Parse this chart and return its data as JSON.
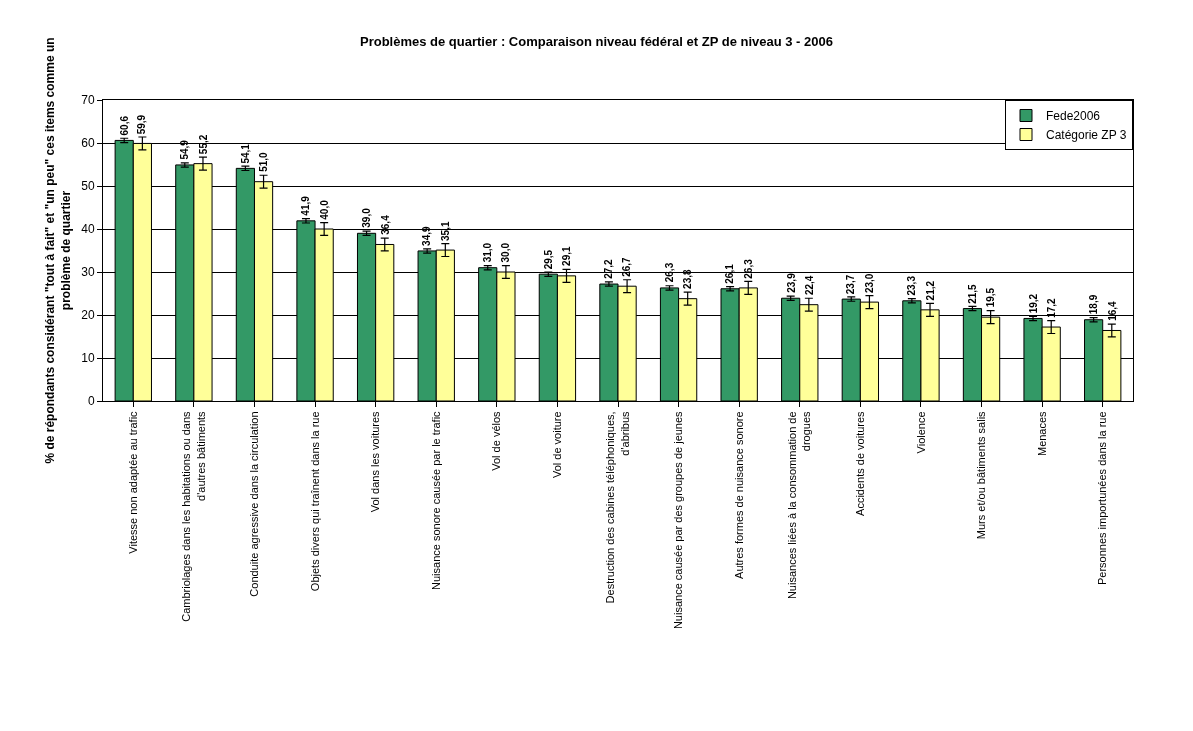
{
  "chart_data": {
    "type": "bar",
    "title": "Problèmes de quartier : Comparaison niveau fédéral et ZP de niveau 3 - 2006",
    "ylabel": "% de répondants considérant \"tout à fait\" et \"un peu\" ces items comme un problème de quartier",
    "categories": [
      "Vitesse non adaptée au trafic",
      "Cambriolages dans les habitations ou dans d'autres bâtiments",
      "Conduite agressive dans la circulation",
      "Objets divers qui traînent dans la rue",
      "Vol dans les voitures",
      "Nuisance sonore causée par le trafic",
      "Vol de vélos",
      "Vol de voiture",
      "Destruction des cabines téléphoniques, d'abribus",
      "Nuisance causée par des groupes de jeunes",
      "Autres formes de nuisance sonore",
      "Nuisances liées à la consommation de drogues",
      "Accidents de voitures",
      "Violence",
      "Murs et/ou bâtiments salis",
      "Menaces",
      "Personnes importunées dans la rue"
    ],
    "series": [
      {
        "name": "Fede2006",
        "color": "#339966",
        "values": [
          60.6,
          54.9,
          54.1,
          41.9,
          39.0,
          34.9,
          31.0,
          29.5,
          27.2,
          26.3,
          26.1,
          23.9,
          23.7,
          23.3,
          21.5,
          19.2,
          18.9
        ],
        "errors": [
          0.5,
          0.5,
          0.5,
          0.5,
          0.5,
          0.5,
          0.5,
          0.5,
          0.5,
          0.5,
          0.5,
          0.5,
          0.5,
          0.5,
          0.5,
          0.5,
          0.5
        ],
        "value_labels": [
          "60,6",
          "54,9",
          "54,1",
          "41,9",
          "39,0",
          "34,9",
          "31,0",
          "29,5",
          "27,2",
          "26,3",
          "26,1",
          "23,9",
          "23,7",
          "23,3",
          "21,5",
          "19,2",
          "18,9"
        ]
      },
      {
        "name": "Catégorie ZP 3",
        "color": "#ffff99",
        "values": [
          59.9,
          55.2,
          51.0,
          40.0,
          36.4,
          35.1,
          30.0,
          29.1,
          26.7,
          23.8,
          26.3,
          22.4,
          23.0,
          21.2,
          19.5,
          17.2,
          16.4
        ],
        "errors": [
          1.5,
          1.5,
          1.5,
          1.5,
          1.5,
          1.5,
          1.5,
          1.5,
          1.5,
          1.5,
          1.5,
          1.5,
          1.5,
          1.5,
          1.5,
          1.5,
          1.5
        ],
        "value_labels": [
          "59,9",
          "55,2",
          "51,0",
          "40,0",
          "36,4",
          "35,1",
          "30,0",
          "29,1",
          "26,7",
          "23,8",
          "26,3",
          "22,4",
          "23,0",
          "21,2",
          "19,5",
          "17,2",
          "16,4"
        ]
      }
    ],
    "ylim": [
      0,
      70
    ],
    "yticks": [
      0,
      10,
      20,
      30,
      40,
      50,
      60,
      70
    ],
    "grid": "y",
    "legend": "top right"
  }
}
